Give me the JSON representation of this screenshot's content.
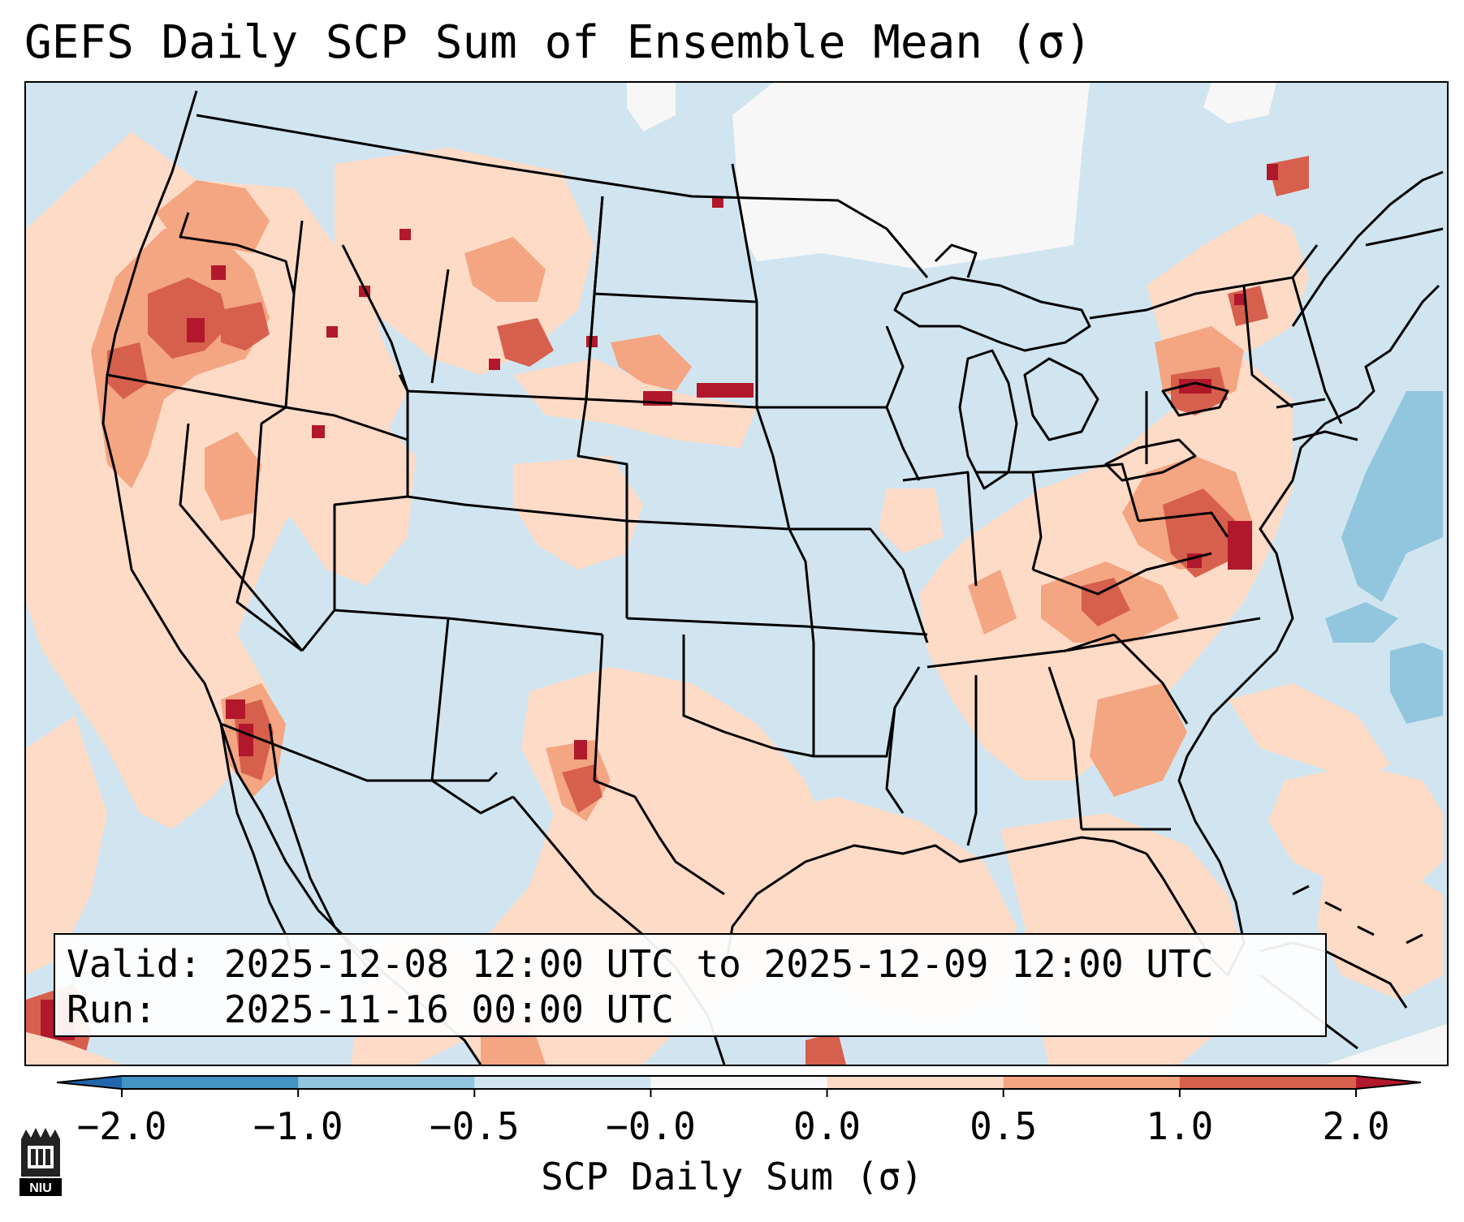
{
  "title": "GEFS Daily SCP Sum of Ensemble Mean (σ)",
  "info": {
    "valid_label": "Valid:",
    "valid_value": "2025-12-08 12:00 UTC to 2025-12-09 12:00 UTC",
    "run_label": "Run:",
    "run_value": "2025-11-16 00:00 UTC"
  },
  "colorbar": {
    "label": "SCP Daily Sum (σ)",
    "tick_labels": [
      "−2.0",
      "−1.0",
      "−0.5",
      "−0.0",
      "0.0",
      "0.5",
      "1.0",
      "2.0"
    ],
    "bins": [
      {
        "range": "< −2.0",
        "color": "#2166ac"
      },
      {
        "range": "−2.0 to −1.0",
        "color": "#4393c3"
      },
      {
        "range": "−1.0 to −0.5",
        "color": "#92c5de"
      },
      {
        "range": "−0.5 to −0.0",
        "color": "#d1e5f0"
      },
      {
        "range": "−0.0 to 0.0",
        "color": "#f7f7f7"
      },
      {
        "range": "0.0 to 0.5",
        "color": "#fddbc7"
      },
      {
        "range": "0.5 to 1.0",
        "color": "#f4a582"
      },
      {
        "range": "1.0 to 2.0",
        "color": "#d6604d"
      },
      {
        "range": "> 2.0",
        "color": "#b2182b"
      }
    ]
  },
  "logo": {
    "text": "NIU",
    "color": "#c8102e"
  }
}
